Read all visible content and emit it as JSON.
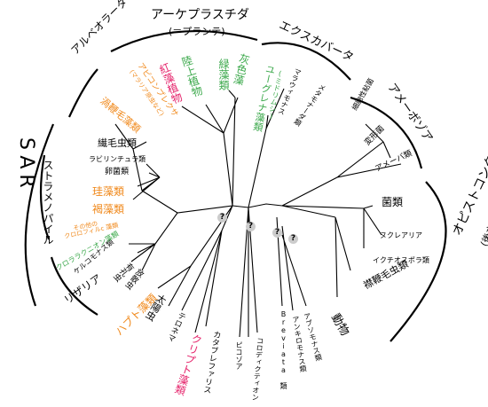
{
  "groups": {
    "sar": "SAR",
    "alveolata": "アルベオラータ",
    "stramenopiles": "ストラメノパイル",
    "rhizaria": "リザリア",
    "archaeplastida": "アーケプラスチダ",
    "archaeplastida_sub": "(＝プランテ)",
    "excavata": "エクスカバータ",
    "amoebozoa": "アメーボゾア",
    "opisthokonta": "オピストコンタ",
    "opisthokonta_sub": "(後方鞭毛生物)"
  },
  "taxa": {
    "apicomplexa": "アピコンプレクサ",
    "apicomplexa_sub": "(マラリア原虫など)",
    "dinoflagellates": "渦鞭毛藻類",
    "ciliates": "繊毛虫類",
    "labyrinthulids": "ラビリンチュラ類",
    "oomycetes": "卵菌類",
    "diatoms": "珪藻類",
    "brown_algae": "褐藻類",
    "other_chl_c": "その他の",
    "other_chl_c2": "クロロフィルc 藻類",
    "chlorarachniophytes": "クロララクニオン藻類",
    "cercozoa": "ケルコモナス類",
    "foraminifera": "有孔虫",
    "radiolaria": "放散虫",
    "haptophytes": "ハプト藻類",
    "heliozoa": "太陽虫",
    "telonema": "テロネマ",
    "cryptophytes": "クリプト藻類",
    "katablepharids": "カタブレファリス",
    "picozoa": "ピコゾア",
    "collodictyon": "コロディクティオン",
    "breviata": "Breviata 類",
    "ancyromonads": "アンキロモナス類",
    "apusomonads": "アプソモナス類",
    "animals": "動物",
    "choanoflagellates": "襟鞭毛虫類",
    "ichthyosporea": "イクチオスポラ類",
    "nucleariids": "ヌクレアリア",
    "fungi": "菌類",
    "amoebae": "アメーバ類",
    "mycetozoa": "変形菌",
    "cellular_slime": "細胞性粘菌",
    "metamonads": "メタモナーダ類",
    "malawimonads": "マラウィモナス",
    "euglenozoa": "ユーグレナ藻類",
    "euglenozoa_sub": "(ミドリムシ)",
    "glaucophytes": "灰色藻",
    "green_algae": "緑藻類",
    "land_plants": "陸上植物",
    "red_algae": "紅藻植物"
  },
  "unknown_mark": "?",
  "colors": {
    "orange": "#f0891c",
    "green": "#3aa84a",
    "red": "#e5226a",
    "black": "#000000",
    "unknown_disc": "#cccccc"
  }
}
